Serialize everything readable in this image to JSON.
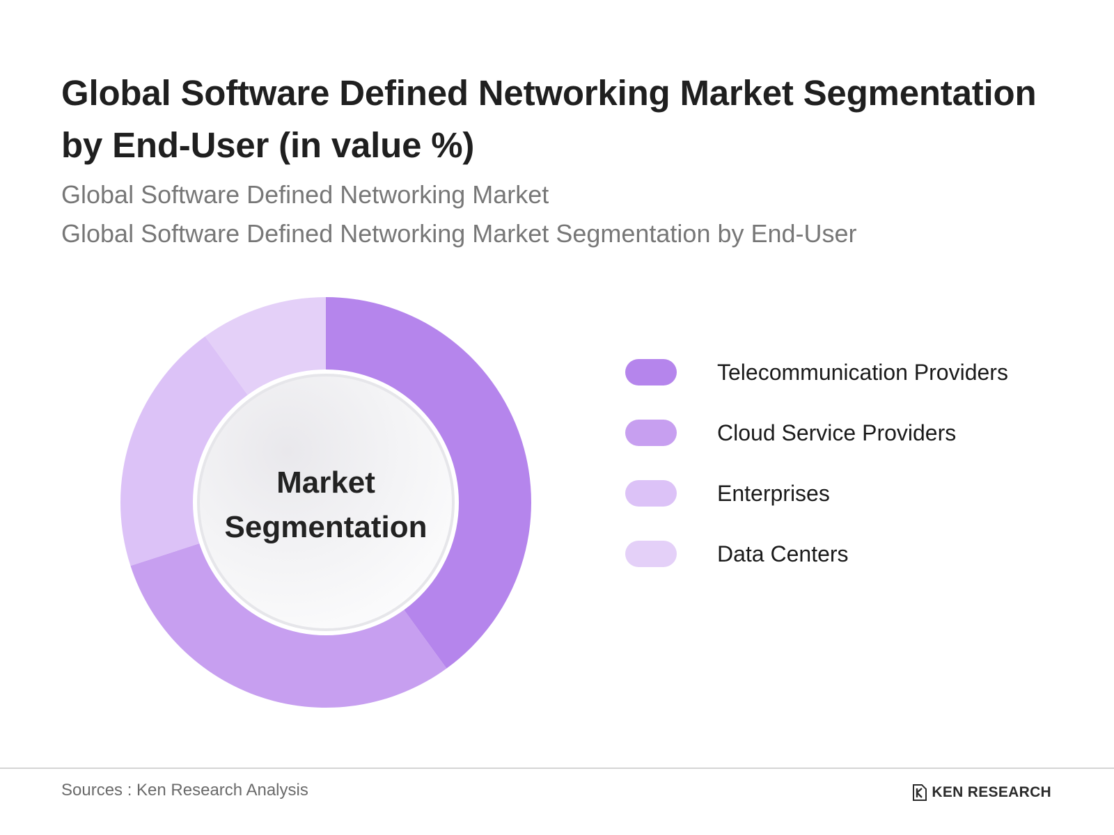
{
  "header": {
    "title": "Global Software Defined Networking Market Segmentation by End-User (in value %)",
    "subtitle_1": "Global Software Defined Networking Market",
    "subtitle_2": "Global Software Defined Networking Market Segmentation by End-User"
  },
  "chart_data": {
    "type": "pie",
    "variant": "donut",
    "title": "Global Software Defined Networking Market Segmentation by End-User (in value %)",
    "center_label": "Market Segmentation",
    "categories": [
      "Telecommunication Providers",
      "Cloud Service Providers",
      "Enterprises",
      "Data Centers"
    ],
    "values": [
      40,
      30,
      20,
      10
    ],
    "unit": "%",
    "colors": [
      "#b585ec",
      "#c79ff0",
      "#dcc2f7",
      "#e4d0f8"
    ],
    "legend_position": "right"
  },
  "footer": {
    "source": "Sources : Ken Research Analysis",
    "brand": "KEN RESEARCH"
  },
  "icons": {
    "brand_logo": "ken-research-logo-icon"
  }
}
